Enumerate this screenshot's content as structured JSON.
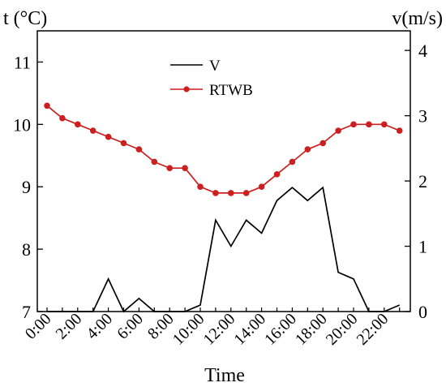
{
  "chart_data": {
    "type": "line",
    "title": "",
    "xlabel": "Time",
    "ylabel_left": "t (°C)",
    "ylabel_right": "v(m/s)",
    "x": [
      "0:00",
      "1:00",
      "2:00",
      "3:00",
      "4:00",
      "5:00",
      "6:00",
      "7:00",
      "8:00",
      "9:00",
      "10:00",
      "11:00",
      "12:00",
      "13:00",
      "14:00",
      "15:00",
      "16:00",
      "17:00",
      "18:00",
      "19:00",
      "20:00",
      "21:00",
      "22:00",
      "23:00"
    ],
    "x_tick_labels": [
      "0:00",
      "2:00",
      "4:00",
      "6:00",
      "8:00",
      "10:00",
      "12:00",
      "14:00",
      "16:00",
      "18:00",
      "20:00",
      "22:00"
    ],
    "ylim_left": [
      7,
      11.5
    ],
    "yticks_left": [
      7,
      8,
      9,
      10,
      11
    ],
    "ylim_right": [
      0,
      4.3
    ],
    "yticks_right": [
      0,
      1,
      2,
      3,
      4
    ],
    "legend_position": "top-center",
    "grid": false,
    "series": [
      {
        "name": "V",
        "axis": "right",
        "color": "#000000",
        "marker": "none",
        "values": [
          0,
          0,
          0,
          0,
          0.5,
          0,
          0.2,
          0,
          0,
          0,
          0.1,
          1.4,
          1.0,
          1.4,
          1.2,
          1.7,
          1.9,
          1.7,
          1.9,
          0.6,
          0.5,
          0,
          0,
          0.1
        ]
      },
      {
        "name": "RTWB",
        "axis": "left",
        "color": "#cc1f1f",
        "marker": "circle",
        "values": [
          10.3,
          10.1,
          10.0,
          9.9,
          9.8,
          9.7,
          9.6,
          9.4,
          9.3,
          9.3,
          9.0,
          8.9,
          8.9,
          8.9,
          9.0,
          9.2,
          9.4,
          9.6,
          9.7,
          9.9,
          10.0,
          10.0,
          10.0,
          9.9
        ]
      }
    ]
  }
}
